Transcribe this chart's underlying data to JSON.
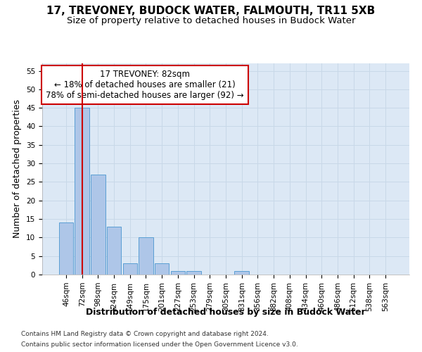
{
  "title": "17, TREVONEY, BUDOCK WATER, FALMOUTH, TR11 5XB",
  "subtitle": "Size of property relative to detached houses in Budock Water",
  "xlabel": "Distribution of detached houses by size in Budock Water",
  "ylabel": "Number of detached properties",
  "footnote1": "Contains HM Land Registry data © Crown copyright and database right 2024.",
  "footnote2": "Contains public sector information licensed under the Open Government Licence v3.0.",
  "bar_labels": [
    "46sqm",
    "72sqm",
    "98sqm",
    "124sqm",
    "149sqm",
    "175sqm",
    "201sqm",
    "227sqm",
    "253sqm",
    "279sqm",
    "305sqm",
    "331sqm",
    "356sqm",
    "382sqm",
    "408sqm",
    "434sqm",
    "460sqm",
    "486sqm",
    "512sqm",
    "538sqm",
    "563sqm"
  ],
  "bar_values": [
    14,
    45,
    27,
    13,
    3,
    10,
    3,
    1,
    1,
    0,
    0,
    1,
    0,
    0,
    0,
    0,
    0,
    0,
    0,
    0,
    0
  ],
  "bar_color": "#aec6e8",
  "bar_edgecolor": "#5a9fd4",
  "vline_x": 1.0,
  "vline_color": "#cc0000",
  "ylim": [
    0,
    57
  ],
  "yticks": [
    0,
    5,
    10,
    15,
    20,
    25,
    30,
    35,
    40,
    45,
    50,
    55
  ],
  "annotation_title": "17 TREVONEY: 82sqm",
  "annotation_line1": "← 18% of detached houses are smaller (21)",
  "annotation_line2": "78% of semi-detached houses are larger (92) →",
  "annotation_box_color": "#cc0000",
  "annotation_box_facecolor": "#ffffff",
  "title_fontsize": 11,
  "subtitle_fontsize": 9.5,
  "axis_label_fontsize": 9,
  "tick_fontsize": 7.5,
  "annotation_fontsize": 8.5,
  "footnote_fontsize": 6.5,
  "background_color": "#ffffff",
  "grid_color": "#c8d8e8",
  "ax_facecolor": "#dce8f5"
}
